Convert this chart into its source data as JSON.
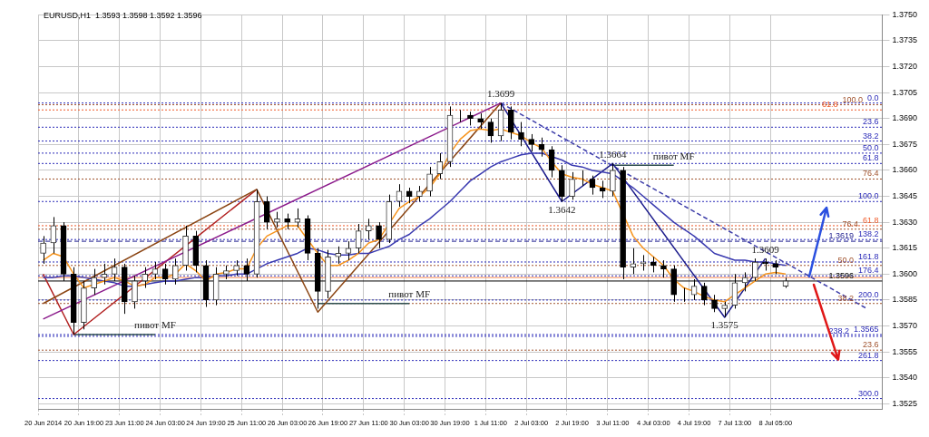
{
  "chart_data": {
    "type": "candlestick",
    "title": "EURUSD,H1  1.3593 1.3598 1.3592 1.3596",
    "categories": [
      "20 Jun 2014",
      null,
      null,
      null,
      "20 Jun 19:00",
      null,
      null,
      null,
      "23 Jun 11:00",
      null,
      null,
      null,
      "24 Jun 03:00",
      null,
      null,
      null,
      "24 Jun 19:00",
      null,
      null,
      null,
      "25 Jun 11:00",
      null,
      null,
      null,
      "26 Jun 03:00",
      null,
      null,
      null,
      "26 Jun 19:00",
      null,
      null,
      null,
      "27 Jun 11:00",
      null,
      null,
      null,
      "30 Jun 03:00",
      null,
      null,
      null,
      "30 Jun 19:00",
      null,
      null,
      null,
      "1 Jul 11:00",
      null,
      null,
      null,
      "2 Jul 03:00",
      null,
      null,
      null,
      "2 Jul 19:00",
      null,
      null,
      null,
      "3 Jul 11:00",
      null,
      null,
      null,
      "4 Jul 03:00",
      null,
      null,
      null,
      "4 Jul 19:00",
      null,
      null,
      null,
      "7 Jul 13:00",
      null,
      null,
      null,
      "8 Jul 05:00",
      null,
      null,
      null,
      null,
      null,
      null,
      null,
      null,
      null,
      null
    ],
    "ohlc": [
      [
        1.3612,
        1.3622,
        1.3606,
        1.3618
      ],
      [
        1.3618,
        1.3633,
        1.3612,
        1.3628
      ],
      [
        1.3628,
        1.363,
        1.3596,
        1.36
      ],
      [
        1.36,
        1.3604,
        1.3565,
        1.3572
      ],
      [
        1.3572,
        1.3596,
        1.3568,
        1.3592
      ],
      [
        1.3592,
        1.3603,
        1.3588,
        1.3598
      ],
      [
        1.3598,
        1.3606,
        1.3594,
        1.36
      ],
      [
        1.36,
        1.3609,
        1.3596,
        1.3604
      ],
      [
        1.3604,
        1.3606,
        1.3577,
        1.3584
      ],
      [
        1.3584,
        1.3599,
        1.358,
        1.3596
      ],
      [
        1.3596,
        1.3604,
        1.3592,
        1.36
      ],
      [
        1.36,
        1.3607,
        1.3597,
        1.3603
      ],
      [
        1.3603,
        1.3606,
        1.3594,
        1.3597
      ],
      [
        1.3597,
        1.3609,
        1.3594,
        1.3605
      ],
      [
        1.3605,
        1.3628,
        1.3602,
        1.3622
      ],
      [
        1.3622,
        1.3625,
        1.3601,
        1.3605
      ],
      [
        1.3605,
        1.3608,
        1.3581,
        1.3585
      ],
      [
        1.3585,
        1.3604,
        1.3582,
        1.36
      ],
      [
        1.36,
        1.3605,
        1.3597,
        1.3602
      ],
      [
        1.3602,
        1.3608,
        1.3599,
        1.3605
      ],
      [
        1.3605,
        1.3609,
        1.3596,
        1.36
      ],
      [
        1.36,
        1.3649,
        1.3598,
        1.3642
      ],
      [
        1.3642,
        1.3645,
        1.3626,
        1.363
      ],
      [
        1.363,
        1.3636,
        1.3627,
        1.3632
      ],
      [
        1.3632,
        1.3635,
        1.3626,
        1.363
      ],
      [
        1.363,
        1.3638,
        1.3627,
        1.3632
      ],
      [
        1.3632,
        1.3634,
        1.3608,
        1.3612
      ],
      [
        1.3612,
        1.3615,
        1.358,
        1.359
      ],
      [
        1.359,
        1.3614,
        1.3586,
        1.361
      ],
      [
        1.361,
        1.3616,
        1.3606,
        1.3612
      ],
      [
        1.3612,
        1.3619,
        1.3608,
        1.3615
      ],
      [
        1.3615,
        1.3629,
        1.3612,
        1.3625
      ],
      [
        1.3625,
        1.3632,
        1.362,
        1.3628
      ],
      [
        1.3628,
        1.363,
        1.3615,
        1.362
      ],
      [
        1.362,
        1.3646,
        1.3618,
        1.3642
      ],
      [
        1.3642,
        1.3652,
        1.3639,
        1.3648
      ],
      [
        1.3648,
        1.365,
        1.3641,
        1.3645
      ],
      [
        1.3645,
        1.3651,
        1.3642,
        1.3648
      ],
      [
        1.3648,
        1.3662,
        1.3645,
        1.3658
      ],
      [
        1.3658,
        1.367,
        1.3655,
        1.3665
      ],
      [
        1.3665,
        1.3697,
        1.3662,
        1.3692
      ],
      [
        1.3692,
        1.3695,
        1.3688,
        1.3692
      ],
      [
        1.3692,
        1.3694,
        1.3686,
        1.369
      ],
      [
        1.369,
        1.3693,
        1.3684,
        1.3688
      ],
      [
        1.3688,
        1.369,
        1.3676,
        1.368
      ],
      [
        1.368,
        1.3699,
        1.3677,
        1.3695
      ],
      [
        1.3695,
        1.3697,
        1.3678,
        1.3682
      ],
      [
        1.3682,
        1.3688,
        1.3674,
        1.3678
      ],
      [
        1.3678,
        1.3681,
        1.3671,
        1.3675
      ],
      [
        1.3675,
        1.3679,
        1.3668,
        1.3672
      ],
      [
        1.3672,
        1.3674,
        1.3656,
        1.366
      ],
      [
        1.366,
        1.3663,
        1.3642,
        1.3645
      ],
      [
        1.3645,
        1.3659,
        1.3643,
        1.3655
      ],
      [
        1.3655,
        1.366,
        1.3651,
        1.3655
      ],
      [
        1.3655,
        1.3657,
        1.3646,
        1.365
      ],
      [
        1.365,
        1.3654,
        1.3644,
        1.3648
      ],
      [
        1.3648,
        1.3664,
        1.3645,
        1.366
      ],
      [
        1.366,
        1.3662,
        1.3597,
        1.3604
      ],
      [
        1.3604,
        1.3615,
        1.36,
        1.3606
      ],
      [
        1.3606,
        1.3611,
        1.3602,
        1.3607
      ],
      [
        1.3607,
        1.361,
        1.3601,
        1.3605
      ],
      [
        1.3605,
        1.3608,
        1.3598,
        1.3603
      ],
      [
        1.3603,
        1.3605,
        1.3584,
        1.3588
      ],
      [
        1.3588,
        1.3592,
        1.3584,
        1.3588
      ],
      [
        1.3588,
        1.3597,
        1.3585,
        1.3593
      ],
      [
        1.3593,
        1.3595,
        1.3582,
        1.3585
      ],
      [
        1.3585,
        1.3588,
        1.3578,
        1.358
      ],
      [
        1.358,
        1.3584,
        1.3575,
        1.3582
      ],
      [
        1.3582,
        1.36,
        1.358,
        1.3595
      ],
      [
        1.3595,
        1.3601,
        1.359,
        1.3598
      ],
      [
        1.3598,
        1.3609,
        1.3596,
        1.3607
      ],
      [
        1.3607,
        1.3609,
        1.3602,
        1.3606
      ],
      [
        1.3606,
        1.3608,
        1.36,
        1.3604
      ],
      [
        1.3593,
        1.3598,
        1.3592,
        1.3596
      ],
      null,
      null,
      null,
      null,
      null,
      null,
      null,
      null,
      null
    ],
    "series": [
      {
        "type": "line",
        "color": "#f7941d",
        "values": [
          1.3608,
          1.3612,
          1.361,
          1.36,
          1.3592,
          1.3594,
          1.3596,
          1.3598,
          1.3596,
          1.3593,
          1.3594,
          1.3598,
          1.3598,
          1.36,
          1.3606,
          1.3602,
          1.3596,
          1.36,
          1.3601,
          1.3603,
          1.3603,
          1.3615,
          1.3622,
          1.3625,
          1.3628,
          1.3628,
          1.362,
          1.3612,
          1.3605,
          1.3605,
          1.3608,
          1.3612,
          1.3618,
          1.362,
          null,
          1.3638,
          1.3642,
          1.3645,
          1.365,
          1.3658,
          1.367,
          1.3678,
          1.3683,
          1.3684,
          1.3683,
          1.3684,
          1.3682,
          1.368,
          1.3676,
          1.3673,
          1.3665,
          1.3658,
          1.3656,
          1.3655,
          1.3652,
          1.365,
          1.3648,
          null,
          1.3622,
          1.3615,
          1.361,
          1.3605,
          1.3597,
          1.3592,
          1.359,
          1.3587,
          1.3585,
          1.3584,
          1.3588,
          1.3592,
          1.3596,
          1.36,
          1.3601,
          1.36,
          null,
          null,
          null,
          null,
          null,
          null,
          null,
          null,
          null
        ]
      },
      {
        "type": "line",
        "color": "#3a3ab0",
        "values": [
          1.3598,
          1.3598,
          1.3599,
          1.3599,
          1.3598,
          1.3597,
          1.3596,
          1.3595,
          1.3593,
          1.3593,
          1.3594,
          1.3595,
          1.3596,
          1.3596,
          1.3597,
          1.3598,
          1.3598,
          1.3599,
          1.3599,
          1.36,
          1.36,
          1.3603,
          1.3606,
          1.3608,
          1.361,
          1.3612,
          1.3615,
          1.3614,
          1.3612,
          1.3611,
          1.3611,
          1.3612,
          1.3612,
          1.3614,
          1.3616,
          1.362,
          1.3623,
          1.3628,
          1.3632,
          1.3637,
          1.3642,
          1.3648,
          1.3654,
          1.3658,
          1.3662,
          1.3665,
          1.3667,
          1.3669,
          1.367,
          1.367,
          1.3668,
          1.3666,
          1.3663,
          1.3662,
          1.366,
          1.3659,
          1.3658,
          1.3654,
          1.365,
          1.3645,
          1.364,
          1.3635,
          1.363,
          1.3626,
          1.3622,
          1.3617,
          1.3612,
          1.361,
          1.3608,
          1.3608,
          1.3607,
          1.3607,
          1.3606,
          1.3605,
          null,
          null,
          null,
          null,
          null,
          null,
          null,
          null,
          null
        ]
      },
      {
        "type": "line",
        "color": "#8b1a8b",
        "values": [
          1.3574,
          null,
          null,
          null,
          null,
          null,
          null,
          null,
          null,
          null,
          null,
          null,
          null,
          null,
          null,
          null,
          null,
          null,
          null,
          null,
          null,
          null,
          null,
          null,
          null,
          null,
          null,
          null,
          null,
          null,
          null,
          null,
          null,
          null,
          null,
          null,
          null,
          null,
          null,
          null,
          null,
          null,
          null,
          null,
          null,
          1.3699,
          null,
          null,
          null,
          null,
          null,
          null,
          null,
          null,
          null,
          null,
          null,
          null,
          null,
          null,
          null,
          null,
          null,
          null,
          null,
          null,
          null,
          null,
          null,
          null,
          null,
          null,
          null,
          null,
          null,
          null,
          null,
          null,
          null,
          null,
          null,
          null,
          null
        ]
      },
      {
        "type": "line",
        "color": "#8b4513",
        "values": [
          1.3583,
          null,
          null,
          null,
          null,
          null,
          null,
          null,
          null,
          null,
          null,
          null,
          null,
          null,
          null,
          null,
          null,
          null,
          null,
          null,
          null,
          1.3649,
          null,
          null,
          null,
          null,
          null,
          1.3578,
          null,
          null,
          null,
          null,
          null,
          null,
          null,
          null,
          null,
          null,
          null,
          null,
          null,
          null,
          null,
          null,
          null,
          1.3699,
          null,
          null,
          null,
          null,
          null,
          null,
          null,
          null,
          null,
          null,
          null,
          null,
          null,
          null,
          null,
          null,
          null,
          null,
          null,
          null,
          null,
          null,
          null,
          null,
          null,
          null,
          null,
          null,
          null,
          null,
          null,
          null,
          null,
          null,
          null,
          null,
          null
        ]
      },
      {
        "type": "line",
        "color": "#b22222",
        "values": [
          1.36,
          null,
          null,
          1.3565,
          null,
          null,
          null,
          null,
          null,
          null,
          null,
          null,
          null,
          null,
          null,
          null,
          null,
          null,
          null,
          null,
          null,
          1.3649,
          null,
          null,
          null,
          null,
          null,
          null,
          null,
          null,
          null,
          null,
          null,
          null,
          null,
          null,
          null,
          null,
          null,
          null,
          null,
          null,
          null,
          null,
          null,
          null,
          null,
          null,
          null,
          null,
          null,
          null,
          null,
          null,
          null,
          null,
          null,
          null,
          null,
          null,
          null,
          null,
          null,
          null,
          null,
          null,
          null,
          null,
          null,
          null,
          null,
          null,
          null,
          null,
          null,
          null,
          null,
          null,
          null,
          null,
          null,
          null,
          null
        ]
      },
      {
        "type": "line",
        "color": "#1c1c8c",
        "values": [
          null,
          null,
          null,
          null,
          null,
          null,
          null,
          null,
          null,
          null,
          null,
          null,
          null,
          null,
          null,
          null,
          null,
          null,
          null,
          null,
          null,
          null,
          null,
          null,
          null,
          null,
          null,
          null,
          null,
          null,
          null,
          null,
          null,
          null,
          null,
          null,
          null,
          null,
          null,
          null,
          null,
          null,
          null,
          null,
          null,
          1.3699,
          null,
          null,
          null,
          null,
          null,
          1.3642,
          null,
          null,
          null,
          null,
          1.3664,
          null,
          null,
          null,
          null,
          null,
          null,
          null,
          null,
          null,
          null,
          1.3575,
          null,
          null,
          null,
          1.3609,
          null,
          null,
          null,
          null,
          null,
          null,
          null,
          null,
          null,
          null,
          null
        ],
        "value_labels": [
          null,
          null,
          null,
          null,
          null,
          null,
          null,
          null,
          null,
          null,
          null,
          null,
          null,
          null,
          null,
          null,
          null,
          null,
          null,
          null,
          null,
          null,
          null,
          null,
          null,
          null,
          null,
          null,
          null,
          null,
          null,
          null,
          null,
          null,
          null,
          null,
          null,
          null,
          null,
          null,
          null,
          null,
          null,
          null,
          null,
          "1.3699",
          null,
          null,
          null,
          null,
          null,
          "1.3642",
          null,
          null,
          null,
          null,
          "1.3664",
          null,
          null,
          null,
          null,
          null,
          null,
          null,
          null,
          null,
          null,
          "1.3575",
          null,
          null,
          null,
          "1.3609",
          null,
          null,
          null,
          null,
          null,
          null,
          null,
          null,
          null,
          null,
          null
        ]
      },
      {
        "type": "line",
        "color": "#3c3ca8",
        "line_style": "dashed",
        "values": [
          null,
          null,
          null,
          null,
          null,
          null,
          null,
          null,
          null,
          null,
          null,
          null,
          null,
          null,
          null,
          null,
          null,
          null,
          null,
          null,
          null,
          null,
          null,
          null,
          null,
          null,
          null,
          null,
          null,
          null,
          null,
          null,
          null,
          null,
          null,
          null,
          null,
          null,
          null,
          null,
          null,
          null,
          null,
          null,
          null,
          1.3699,
          null,
          null,
          null,
          null,
          null,
          null,
          null,
          null,
          null,
          null,
          null,
          null,
          null,
          null,
          null,
          null,
          null,
          null,
          null,
          null,
          null,
          null,
          null,
          null,
          null,
          null,
          null,
          null,
          null,
          null,
          null,
          null,
          null,
          null,
          null,
          1.358,
          null
        ]
      },
      {
        "type": "line",
        "color": "#2f4f4f",
        "values": [
          null,
          null,
          null,
          1.3565,
          null,
          null,
          null,
          null,
          null,
          null,
          null,
          1.3565,
          null,
          null,
          null,
          null,
          null,
          null,
          null,
          null,
          null,
          null,
          null,
          null,
          null,
          null,
          null,
          null,
          null,
          null,
          null,
          null,
          null,
          null,
          null,
          null,
          null,
          null,
          null,
          null,
          null,
          null,
          null,
          null,
          null,
          null,
          null,
          null,
          null,
          null,
          null,
          null,
          null,
          null,
          null,
          null,
          null,
          null,
          null,
          null,
          null,
          null,
          null,
          null,
          null,
          null,
          null,
          null,
          null,
          null,
          null,
          null,
          null,
          null,
          null,
          null,
          null,
          null,
          null,
          null,
          null,
          null,
          null
        ],
        "value_labels": [
          null,
          null,
          null,
          null,
          null,
          null,
          null,
          null,
          null,
          null,
          null,
          "пивот MF",
          null,
          null,
          null,
          null,
          null,
          null,
          null,
          null,
          null,
          null,
          null,
          null,
          null,
          null,
          null,
          null,
          null,
          null,
          null,
          null,
          null,
          null,
          null,
          null,
          null,
          null,
          null,
          null,
          null,
          null,
          null,
          null,
          null,
          null,
          null,
          null,
          null,
          null,
          null,
          null,
          null,
          null,
          null,
          null,
          null,
          null,
          null,
          null,
          null,
          null,
          null,
          null,
          null,
          null,
          null,
          null,
          null,
          null,
          null,
          null,
          null,
          null,
          null,
          null,
          null,
          null,
          null,
          null,
          null,
          null,
          null
        ]
      },
      {
        "type": "line",
        "color": "#2f4f4f",
        "values": [
          null,
          null,
          null,
          null,
          null,
          null,
          null,
          null,
          null,
          null,
          null,
          null,
          null,
          null,
          null,
          null,
          null,
          null,
          null,
          null,
          null,
          null,
          null,
          null,
          null,
          null,
          null,
          1.3583,
          null,
          null,
          null,
          null,
          null,
          null,
          null,
          null,
          1.3583,
          null,
          null,
          null,
          null,
          null,
          null,
          null,
          null,
          null,
          null,
          null,
          null,
          null,
          null,
          null,
          null,
          null,
          null,
          null,
          null,
          null,
          null,
          null,
          null,
          null,
          null,
          null,
          null,
          null,
          null,
          null,
          null,
          null,
          null,
          null,
          null,
          null,
          null,
          null,
          null,
          null,
          null,
          null,
          null,
          null,
          null
        ],
        "value_labels": [
          null,
          null,
          null,
          null,
          null,
          null,
          null,
          null,
          null,
          null,
          null,
          null,
          null,
          null,
          null,
          null,
          null,
          null,
          null,
          null,
          null,
          null,
          null,
          null,
          null,
          null,
          null,
          null,
          null,
          null,
          null,
          null,
          null,
          null,
          null,
          null,
          "пивот MF",
          null,
          null,
          null,
          null,
          null,
          null,
          null,
          null,
          null,
          null,
          null,
          null,
          null,
          null,
          null,
          null,
          null,
          null,
          null,
          null,
          null,
          null,
          null,
          null,
          null,
          null,
          null,
          null,
          null,
          null,
          null,
          null,
          null,
          null,
          null,
          null,
          null,
          null,
          null,
          null,
          null,
          null,
          null,
          null,
          null,
          null
        ]
      },
      {
        "type": "line",
        "color": "#2f4f4f",
        "values": [
          null,
          null,
          null,
          null,
          null,
          null,
          null,
          null,
          null,
          null,
          null,
          null,
          null,
          null,
          null,
          null,
          null,
          null,
          null,
          null,
          null,
          null,
          null,
          null,
          null,
          null,
          null,
          null,
          null,
          null,
          null,
          null,
          null,
          null,
          null,
          null,
          null,
          null,
          null,
          null,
          null,
          null,
          null,
          null,
          null,
          null,
          null,
          null,
          null,
          null,
          null,
          null,
          null,
          null,
          null,
          null,
          1.3663,
          null,
          null,
          null,
          null,
          null,
          1.3663,
          null,
          null,
          null,
          null,
          null,
          null,
          null,
          null,
          null,
          null,
          null,
          null,
          null,
          null,
          null,
          null,
          null,
          null,
          null,
          null
        ],
        "value_labels": [
          null,
          null,
          null,
          null,
          null,
          null,
          null,
          null,
          null,
          null,
          null,
          null,
          null,
          null,
          null,
          null,
          null,
          null,
          null,
          null,
          null,
          null,
          null,
          null,
          null,
          null,
          null,
          null,
          null,
          null,
          null,
          null,
          null,
          null,
          null,
          null,
          null,
          null,
          null,
          null,
          null,
          null,
          null,
          null,
          null,
          null,
          null,
          null,
          null,
          null,
          null,
          null,
          null,
          null,
          null,
          null,
          null,
          null,
          null,
          null,
          null,
          null,
          "пивот MF",
          null,
          null,
          null,
          null,
          null,
          null,
          null,
          null,
          null,
          null,
          null,
          null,
          null,
          null,
          null,
          null,
          null,
          null,
          null,
          null
        ]
      }
    ],
    "ylim": [
      1.3522,
      1.375
    ],
    "yticks": [
      1.3525,
      {
        "value": 1.354,
        "label": "1.3540"
      },
      1.3555,
      {
        "value": 1.357,
        "label": "1.3570"
      },
      1.3585,
      {
        "value": 1.36,
        "label": "1.3600"
      },
      1.3615,
      {
        "value": 1.363,
        "label": "1.3630"
      },
      1.3645,
      {
        "value": 1.366,
        "label": "1.3660"
      },
      1.3675,
      {
        "value": 1.369,
        "label": "1.3690"
      },
      1.3705,
      {
        "value": 1.372,
        "label": "1.3720"
      },
      1.3735,
      {
        "value": 1.375,
        "label": "1.3750"
      }
    ],
    "ref_lines": [
      {
        "axis": "y",
        "value": 1.3699,
        "color": "#2a2ab8",
        "line_style": "dotted"
      },
      {
        "axis": "y",
        "value": 1.3685,
        "color": "#2a2ab8",
        "line_style": "dotted"
      },
      {
        "axis": "y",
        "value": 1.3677,
        "color": "#2a2ab8",
        "line_style": "dotted"
      },
      {
        "axis": "y",
        "value": 1.367,
        "color": "#2a2ab8",
        "line_style": "dotted"
      },
      {
        "axis": "y",
        "value": 1.3664,
        "color": "#2a2ab8",
        "line_style": "dotted"
      },
      {
        "axis": "y",
        "value": 1.3642,
        "color": "#2a2ab8",
        "line_style": "dotted"
      },
      {
        "axis": "y",
        "value": 1.362,
        "color": "#2a2ab8",
        "line_style": "dotted"
      },
      {
        "axis": "y",
        "value": 1.3607,
        "color": "#2a2ab8",
        "line_style": "dotted"
      },
      {
        "axis": "y",
        "value": 1.3599,
        "color": "#2a2ab8",
        "line_style": "dotted"
      },
      {
        "axis": "y",
        "value": 1.3585,
        "color": "#2a2ab8",
        "line_style": "dotted"
      },
      {
        "axis": "y",
        "value": 1.3564,
        "color": "#2a2ab8",
        "line_style": "dotted"
      },
      {
        "axis": "y",
        "value": 1.355,
        "color": "#2a2ab8",
        "line_style": "dotted"
      },
      {
        "axis": "y",
        "value": 1.3528,
        "color": "#2a2ab8",
        "line_style": "dotted"
      },
      {
        "axis": "y",
        "value": 1.3698,
        "color": "#a0522d",
        "line_style": "dotted"
      },
      {
        "axis": "y",
        "value": 1.3695,
        "color": "#f05a28",
        "line_style": "dotted"
      },
      {
        "axis": "y",
        "value": 1.3655,
        "color": "#a0522d",
        "line_style": "dotted"
      },
      {
        "axis": "y",
        "value": 1.3628,
        "color": "#f05a28",
        "line_style": "dotted"
      },
      {
        "axis": "y",
        "value": 1.3626,
        "color": "#a0522d",
        "line_style": "dotted"
      },
      {
        "axis": "y",
        "value": 1.3605,
        "color": "#a0522d",
        "line_style": "dotted"
      },
      {
        "axis": "y",
        "value": 1.3583,
        "color": "#a0522d",
        "line_style": "dotted"
      },
      {
        "axis": "y",
        "value": 1.3556,
        "color": "#a0522d",
        "line_style": "dotted"
      },
      {
        "axis": "y",
        "value": 1.3619,
        "label": "1.3619",
        "color": "#1c1c8c",
        "line_style": "dashed"
      },
      {
        "axis": "y",
        "value": 1.3598,
        "color": "#f7874f",
        "line_style": "solid"
      },
      {
        "axis": "y",
        "value": 1.3596,
        "label": "1.3596",
        "color": "#000000",
        "line_style": "solid"
      },
      {
        "axis": "y",
        "value": 1.3565,
        "label": "1.3565",
        "color": "#2a2ab8",
        "line_style": "dotted"
      }
    ],
    "annotations": [
      {
        "text": "0.0",
        "y": 1.3699
      },
      {
        "text": "23.6",
        "y": 1.3685
      },
      {
        "text": "38.2",
        "y": 1.3677
      },
      {
        "text": "50.0",
        "y": 1.367
      },
      {
        "text": "61.8",
        "y": 1.3664
      },
      {
        "text": "100.0",
        "y": 1.3642
      },
      {
        "text": "138.2",
        "y": 1.362
      },
      {
        "text": "161.8",
        "y": 1.3607
      },
      {
        "text": "176.4",
        "y": 1.3599
      },
      {
        "text": "200.0",
        "y": 1.3585
      },
      {
        "text": "238.2",
        "y": 1.3564
      },
      {
        "text": "261.8",
        "y": 1.355
      },
      {
        "text": "300.0",
        "y": 1.3528
      },
      {
        "text": "100.0",
        "y": 1.3698
      },
      {
        "text": "61.8",
        "y": 1.3695
      },
      {
        "text": "76.4",
        "y": 1.3655
      },
      {
        "text": "61.8",
        "y": 1.3628
      },
      {
        "text": "76.4",
        "y": 1.3626
      },
      {
        "text": "50.0",
        "y": 1.3605
      },
      {
        "text": "38.2",
        "y": 1.3583
      },
      {
        "text": "23.6",
        "y": 1.3556
      }
    ],
    "grid": true,
    "legend": false,
    "marker": "none"
  }
}
